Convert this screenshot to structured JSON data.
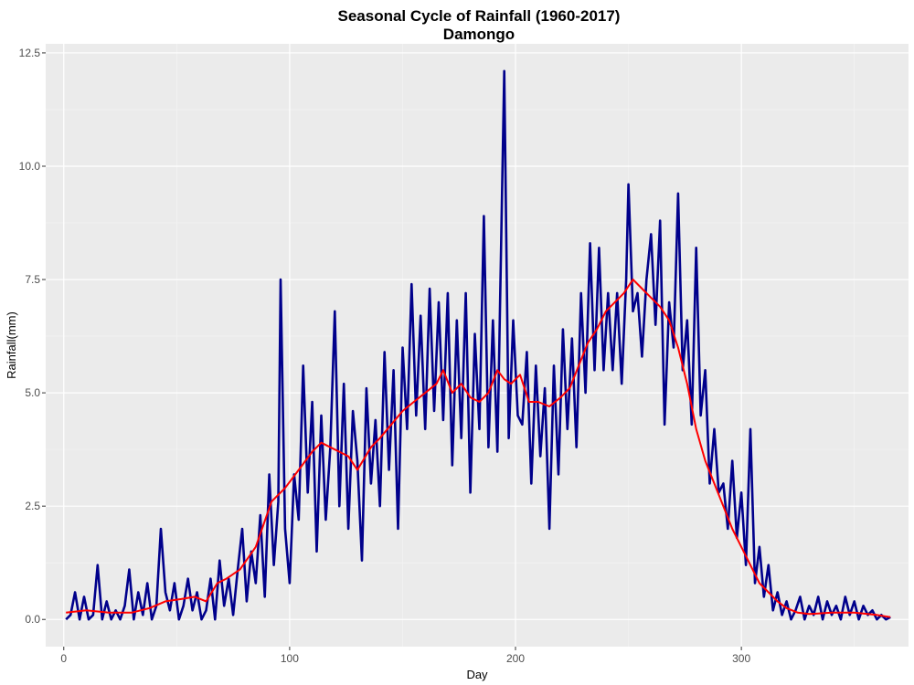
{
  "chart_data": {
    "type": "line",
    "title": "Seasonal Cycle of Rainfall (1960-2017)",
    "subtitle": "Damongo",
    "xlabel": "Day",
    "ylabel": "Rainfall(mm)",
    "xlim": [
      -8,
      374
    ],
    "ylim": [
      -0.6,
      12.7
    ],
    "x_ticks": [
      0,
      100,
      200,
      300
    ],
    "x_tick_labels": [
      "0",
      "100",
      "200",
      "300"
    ],
    "y_ticks": [
      0.0,
      2.5,
      5.0,
      7.5,
      10.0,
      12.5
    ],
    "y_tick_labels": [
      "0.0",
      "2.5",
      "5.0",
      "7.5",
      "10.0",
      "12.5"
    ],
    "background": "#ebebeb",
    "grid": true,
    "series": [
      {
        "color": "#00008b",
        "points": [
          [
            1,
            0.0
          ],
          [
            3,
            0.1
          ],
          [
            5,
            0.6
          ],
          [
            7,
            0.0
          ],
          [
            9,
            0.5
          ],
          [
            11,
            0.0
          ],
          [
            13,
            0.1
          ],
          [
            15,
            1.2
          ],
          [
            17,
            0.0
          ],
          [
            19,
            0.4
          ],
          [
            21,
            0.0
          ],
          [
            23,
            0.2
          ],
          [
            25,
            0.0
          ],
          [
            27,
            0.3
          ],
          [
            29,
            1.1
          ],
          [
            31,
            0.0
          ],
          [
            33,
            0.6
          ],
          [
            35,
            0.1
          ],
          [
            37,
            0.8
          ],
          [
            39,
            0.0
          ],
          [
            41,
            0.3
          ],
          [
            43,
            2.0
          ],
          [
            45,
            0.6
          ],
          [
            47,
            0.2
          ],
          [
            49,
            0.8
          ],
          [
            51,
            0.0
          ],
          [
            53,
            0.3
          ],
          [
            55,
            0.9
          ],
          [
            57,
            0.2
          ],
          [
            59,
            0.6
          ],
          [
            61,
            0.0
          ],
          [
            63,
            0.2
          ],
          [
            65,
            0.9
          ],
          [
            67,
            0.0
          ],
          [
            69,
            1.3
          ],
          [
            71,
            0.3
          ],
          [
            73,
            0.9
          ],
          [
            75,
            0.1
          ],
          [
            77,
            1.1
          ],
          [
            79,
            2.0
          ],
          [
            81,
            0.4
          ],
          [
            83,
            1.5
          ],
          [
            85,
            0.8
          ],
          [
            87,
            2.3
          ],
          [
            89,
            0.5
          ],
          [
            91,
            3.2
          ],
          [
            93,
            1.2
          ],
          [
            95,
            2.6
          ],
          [
            96,
            7.5
          ],
          [
            98,
            2.0
          ],
          [
            100,
            0.8
          ],
          [
            102,
            3.2
          ],
          [
            104,
            2.2
          ],
          [
            106,
            5.6
          ],
          [
            108,
            2.8
          ],
          [
            110,
            4.8
          ],
          [
            112,
            1.5
          ],
          [
            114,
            4.5
          ],
          [
            116,
            2.2
          ],
          [
            118,
            3.8
          ],
          [
            120,
            6.8
          ],
          [
            122,
            2.5
          ],
          [
            124,
            5.2
          ],
          [
            126,
            2.0
          ],
          [
            128,
            4.6
          ],
          [
            130,
            3.5
          ],
          [
            132,
            1.3
          ],
          [
            134,
            5.1
          ],
          [
            136,
            3.0
          ],
          [
            138,
            4.4
          ],
          [
            140,
            2.5
          ],
          [
            142,
            5.9
          ],
          [
            144,
            3.3
          ],
          [
            146,
            5.5
          ],
          [
            148,
            2.0
          ],
          [
            150,
            6.0
          ],
          [
            152,
            4.2
          ],
          [
            154,
            7.4
          ],
          [
            156,
            4.5
          ],
          [
            158,
            6.7
          ],
          [
            160,
            4.2
          ],
          [
            162,
            7.3
          ],
          [
            164,
            4.6
          ],
          [
            166,
            7.0
          ],
          [
            168,
            4.4
          ],
          [
            170,
            7.2
          ],
          [
            172,
            3.4
          ],
          [
            174,
            6.6
          ],
          [
            176,
            4.0
          ],
          [
            178,
            7.2
          ],
          [
            180,
            2.8
          ],
          [
            182,
            6.3
          ],
          [
            184,
            4.2
          ],
          [
            186,
            8.9
          ],
          [
            188,
            3.8
          ],
          [
            190,
            6.6
          ],
          [
            192,
            3.7
          ],
          [
            194,
            9.3
          ],
          [
            195,
            12.1
          ],
          [
            197,
            4.0
          ],
          [
            199,
            6.6
          ],
          [
            201,
            4.5
          ],
          [
            203,
            4.3
          ],
          [
            205,
            5.9
          ],
          [
            207,
            3.0
          ],
          [
            209,
            5.6
          ],
          [
            211,
            3.6
          ],
          [
            213,
            5.1
          ],
          [
            215,
            2.0
          ],
          [
            217,
            5.6
          ],
          [
            219,
            3.2
          ],
          [
            221,
            6.4
          ],
          [
            223,
            4.2
          ],
          [
            225,
            6.2
          ],
          [
            227,
            3.8
          ],
          [
            229,
            7.2
          ],
          [
            231,
            5.0
          ],
          [
            233,
            8.3
          ],
          [
            235,
            5.5
          ],
          [
            237,
            8.2
          ],
          [
            239,
            5.5
          ],
          [
            241,
            7.2
          ],
          [
            243,
            5.5
          ],
          [
            245,
            7.2
          ],
          [
            247,
            5.2
          ],
          [
            249,
            7.5
          ],
          [
            250,
            9.6
          ],
          [
            252,
            6.8
          ],
          [
            254,
            7.2
          ],
          [
            256,
            5.8
          ],
          [
            258,
            7.5
          ],
          [
            260,
            8.5
          ],
          [
            262,
            6.5
          ],
          [
            264,
            8.8
          ],
          [
            266,
            4.3
          ],
          [
            268,
            7.0
          ],
          [
            270,
            6.0
          ],
          [
            272,
            9.4
          ],
          [
            274,
            5.5
          ],
          [
            276,
            6.6
          ],
          [
            278,
            4.3
          ],
          [
            280,
            8.2
          ],
          [
            282,
            4.5
          ],
          [
            284,
            5.5
          ],
          [
            286,
            3.0
          ],
          [
            288,
            4.2
          ],
          [
            290,
            2.8
          ],
          [
            292,
            3.0
          ],
          [
            294,
            2.0
          ],
          [
            296,
            3.5
          ],
          [
            298,
            1.8
          ],
          [
            300,
            2.8
          ],
          [
            302,
            1.2
          ],
          [
            304,
            4.2
          ],
          [
            306,
            0.8
          ],
          [
            308,
            1.6
          ],
          [
            310,
            0.5
          ],
          [
            312,
            1.2
          ],
          [
            314,
            0.2
          ],
          [
            316,
            0.6
          ],
          [
            318,
            0.1
          ],
          [
            320,
            0.4
          ],
          [
            322,
            0.0
          ],
          [
            324,
            0.2
          ],
          [
            326,
            0.5
          ],
          [
            328,
            0.0
          ],
          [
            330,
            0.3
          ],
          [
            332,
            0.1
          ],
          [
            334,
            0.5
          ],
          [
            336,
            0.0
          ],
          [
            338,
            0.4
          ],
          [
            340,
            0.1
          ],
          [
            342,
            0.3
          ],
          [
            344,
            0.0
          ],
          [
            346,
            0.5
          ],
          [
            348,
            0.1
          ],
          [
            350,
            0.4
          ],
          [
            352,
            0.0
          ],
          [
            354,
            0.3
          ],
          [
            356,
            0.1
          ],
          [
            358,
            0.2
          ],
          [
            360,
            0.0
          ],
          [
            362,
            0.1
          ],
          [
            364,
            0.0
          ],
          [
            366,
            0.05
          ]
        ]
      },
      {
        "color": "#ff0000",
        "points": [
          [
            1,
            0.15
          ],
          [
            10,
            0.2
          ],
          [
            20,
            0.15
          ],
          [
            30,
            0.15
          ],
          [
            38,
            0.25
          ],
          [
            45,
            0.4
          ],
          [
            52,
            0.45
          ],
          [
            58,
            0.5
          ],
          [
            63,
            0.4
          ],
          [
            68,
            0.8
          ],
          [
            72,
            0.9
          ],
          [
            78,
            1.1
          ],
          [
            85,
            1.6
          ],
          [
            92,
            2.6
          ],
          [
            98,
            2.9
          ],
          [
            104,
            3.3
          ],
          [
            110,
            3.7
          ],
          [
            114,
            3.9
          ],
          [
            118,
            3.8
          ],
          [
            122,
            3.7
          ],
          [
            126,
            3.6
          ],
          [
            130,
            3.3
          ],
          [
            136,
            3.8
          ],
          [
            140,
            4.0
          ],
          [
            145,
            4.3
          ],
          [
            150,
            4.6
          ],
          [
            155,
            4.8
          ],
          [
            160,
            5.0
          ],
          [
            165,
            5.2
          ],
          [
            168,
            5.5
          ],
          [
            172,
            5.0
          ],
          [
            176,
            5.2
          ],
          [
            180,
            4.9
          ],
          [
            184,
            4.8
          ],
          [
            188,
            5.0
          ],
          [
            192,
            5.5
          ],
          [
            195,
            5.3
          ],
          [
            198,
            5.2
          ],
          [
            202,
            5.4
          ],
          [
            206,
            4.8
          ],
          [
            210,
            4.8
          ],
          [
            215,
            4.7
          ],
          [
            220,
            4.9
          ],
          [
            224,
            5.1
          ],
          [
            228,
            5.6
          ],
          [
            232,
            6.1
          ],
          [
            236,
            6.4
          ],
          [
            240,
            6.8
          ],
          [
            244,
            7.0
          ],
          [
            248,
            7.2
          ],
          [
            252,
            7.5
          ],
          [
            256,
            7.3
          ],
          [
            260,
            7.1
          ],
          [
            264,
            6.9
          ],
          [
            268,
            6.6
          ],
          [
            272,
            6.0
          ],
          [
            276,
            5.2
          ],
          [
            280,
            4.2
          ],
          [
            284,
            3.5
          ],
          [
            288,
            3.0
          ],
          [
            292,
            2.5
          ],
          [
            296,
            2.0
          ],
          [
            300,
            1.6
          ],
          [
            304,
            1.2
          ],
          [
            308,
            0.8
          ],
          [
            312,
            0.6
          ],
          [
            316,
            0.4
          ],
          [
            320,
            0.25
          ],
          [
            325,
            0.15
          ],
          [
            330,
            0.12
          ],
          [
            340,
            0.15
          ],
          [
            350,
            0.15
          ],
          [
            360,
            0.1
          ],
          [
            366,
            0.05
          ]
        ]
      }
    ]
  }
}
